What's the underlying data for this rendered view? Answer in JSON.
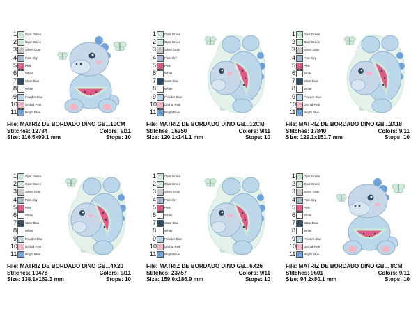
{
  "palette": [
    {
      "num": "1",
      "name": "Opal Green",
      "color": "#cfe9d9"
    },
    {
      "num": "2",
      "name": "Opal Green",
      "color": "#cfe9d9"
    },
    {
      "num": "3",
      "name": "Silver Gray",
      "color": "#c7c9cc"
    },
    {
      "num": "4",
      "name": "Pale Sky",
      "color": "#a9b8cf"
    },
    {
      "num": "5",
      "name": "Pink",
      "color": "#e05a86"
    },
    {
      "num": "6",
      "name": "White",
      "color": "#ffffff"
    },
    {
      "num": "7",
      "name": "Slate Blue",
      "color": "#2f4a63"
    },
    {
      "num": "8",
      "name": "White",
      "color": "#ffffff"
    },
    {
      "num": "9",
      "name": "Powder Blue",
      "color": "#bcd6ea"
    },
    {
      "num": "10",
      "name": "Orchid Pink",
      "color": "#f2b6c8"
    },
    {
      "num": "11",
      "name": "Bright Blue",
      "color": "#6ea2d8"
    }
  ],
  "designs": [
    {
      "file": "File: MATRIZ DE BORDADO DINO GB...10CM",
      "stitches": "Stitches: 12784",
      "colors": "Colors: 9/11",
      "size": "Size: 116.5x99.1 mm",
      "stops": "Stops: 10",
      "pose": "sitting"
    },
    {
      "file": "File: MATRIZ DE BORDADO DINO GB...12CM",
      "stitches": "Stitches: 16250",
      "colors": "Colors: 9/11",
      "size": "Size: 120.1x141.1 mm",
      "stops": "Stops: 10",
      "pose": "hug"
    },
    {
      "file": "File: MATRIZ DE BORDADO DINO GB...3X18",
      "stitches": "Stitches: 17840",
      "colors": "Colors: 9/11",
      "size": "Size: 129.1x151.7 mm",
      "stops": "Stops: 10",
      "pose": "hug"
    },
    {
      "file": "File: MATRIZ DE BORDADO DINO GB...4X20",
      "stitches": "Stitches: 19478",
      "colors": "Colors: 9/11",
      "size": "Size: 138.1x162.3 mm",
      "stops": "Stops: 10",
      "pose": "hug"
    },
    {
      "file": "File: MATRIZ DE BORDADO DINO GB...6X26",
      "stitches": "Stitches: 23757",
      "colors": "Colors: 9/11",
      "size": "Size: 159.0x186.9 mm",
      "stops": "Stops: 10",
      "pose": "hug"
    },
    {
      "file": "File: MATRIZ DE BORDADO DINO GB... 8CM",
      "stitches": "Stitches: 9601",
      "colors": "Colors: 9/11",
      "size": "Size: 94.2x80.1 mm",
      "stops": "Stops: 10",
      "pose": "sitting"
    }
  ]
}
